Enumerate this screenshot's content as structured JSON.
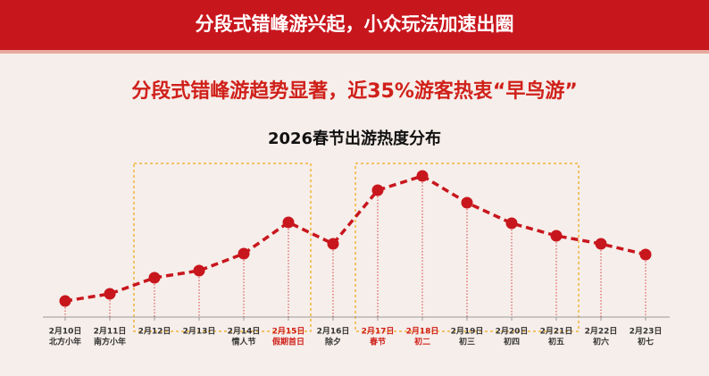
{
  "header": {
    "title": "分段式错峰游兴起，小众玩法加速出圈"
  },
  "headline": "分段式错峰游趋势显著，近35%游客热衷“早鸟游”",
  "chart_data": {
    "type": "line",
    "title": "2026春节出游热度分布",
    "categories": [
      "2月10日",
      "2月11日",
      "2月12日",
      "2月13日",
      "2月14日",
      "2月15日",
      "2月16日",
      "2月17日",
      "2月18日",
      "2月19日",
      "2月20日",
      "2月21日",
      "2月22日",
      "2月23日"
    ],
    "sublabels": [
      "北方小年",
      "南方小年",
      null,
      null,
      "情人节",
      "假期首日",
      "除夕",
      "春节",
      "初二",
      "初三",
      "初四",
      "初五",
      "初六",
      "初七"
    ],
    "label_colors": [
      "#333333",
      "#333333",
      "#333333",
      "#333333",
      "#333333",
      "#d0201a",
      "#333333",
      "#d0201a",
      "#d0201a",
      "#333333",
      "#333333",
      "#333333",
      "#333333",
      "#333333"
    ],
    "series": [
      {
        "name": "出游热度",
        "color": "#c8161d",
        "values": [
          18,
          26,
          44,
          52,
          71,
          106,
          82,
          142,
          158,
          128,
          105,
          91,
          82,
          70
        ]
      }
    ],
    "ylim": [
      0,
      160
    ]
  }
}
